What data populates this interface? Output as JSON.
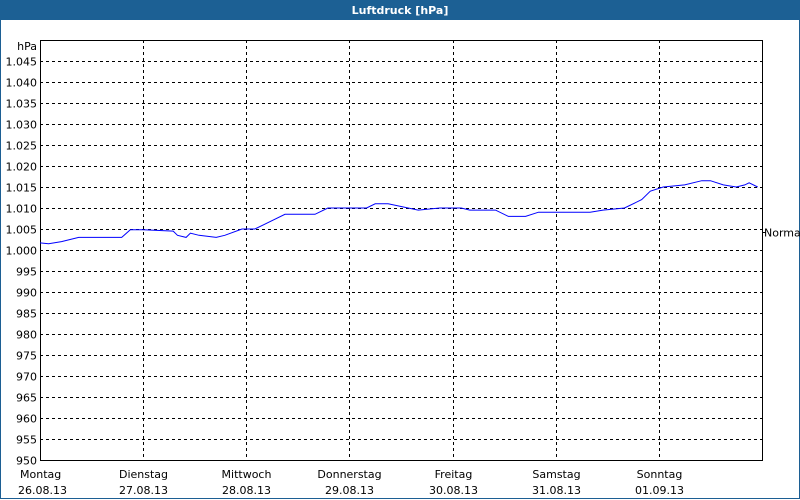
{
  "chart_data": {
    "type": "line",
    "title": "Luftdruck [hPa]",
    "ylabel": "hPa",
    "ylim": [
      950,
      1050
    ],
    "yticks": [
      950,
      955,
      960,
      965,
      970,
      975,
      980,
      985,
      990,
      995,
      1000,
      1005,
      1010,
      1015,
      1020,
      1025,
      1030,
      1035,
      1040,
      1045
    ],
    "ytick_labels": [
      "950",
      "955",
      "960",
      "965",
      "970",
      "975",
      "980",
      "985",
      "990",
      "995",
      "1.000",
      "1.005",
      "1.010",
      "1.015",
      "1.020",
      "1.025",
      "1.030",
      "1.035",
      "1.040",
      "1.045"
    ],
    "xlim": [
      "2013-08-26 00:00",
      "2013-09-02 00:00"
    ],
    "xticks": [
      {
        "day": "Montag",
        "date": "26.08.13",
        "at": "2013-08-26 00:00"
      },
      {
        "day": "Dienstag",
        "date": "27.08.13",
        "at": "2013-08-27 00:00"
      },
      {
        "day": "Mittwoch",
        "date": "28.08.13",
        "at": "2013-08-28 00:00"
      },
      {
        "day": "Donnerstag",
        "date": "29.08.13",
        "at": "2013-08-29 00:00"
      },
      {
        "day": "Freitag",
        "date": "30.08.13",
        "at": "2013-08-30 00:00"
      },
      {
        "day": "Samstag",
        "date": "31.08.13",
        "at": "2013-08-31 00:00"
      },
      {
        "day": "Sonntag",
        "date": "01.09.13",
        "at": "2013-09-01 00:00"
      }
    ],
    "grid": true,
    "reference_line": {
      "label": "Normal",
      "value": 1004.3
    },
    "series": [
      {
        "color": "#0000ff",
        "points": [
          [
            "2013-08-26 00:00",
            1001.7
          ],
          [
            "2013-08-26 02:00",
            1001.5
          ],
          [
            "2013-08-26 05:00",
            1002
          ],
          [
            "2013-08-26 07:00",
            1002.5
          ],
          [
            "2013-08-26 09:00",
            1003
          ],
          [
            "2013-08-26 13:00",
            1003
          ],
          [
            "2013-08-26 16:00",
            1003
          ],
          [
            "2013-08-26 19:00",
            1003
          ],
          [
            "2013-08-26 21:00",
            1004.8
          ],
          [
            "2013-08-27 00:00",
            1004.8
          ],
          [
            "2013-08-27 07:00",
            1004.5
          ],
          [
            "2013-08-27 08:00",
            1003.5
          ],
          [
            "2013-08-27 10:00",
            1003
          ],
          [
            "2013-08-27 11:00",
            1004
          ],
          [
            "2013-08-27 13:00",
            1003.5
          ],
          [
            "2013-08-27 17:00",
            1003
          ],
          [
            "2013-08-27 19:00",
            1003.5
          ],
          [
            "2013-08-27 23:00",
            1005
          ],
          [
            "2013-08-28 02:00",
            1005
          ],
          [
            "2013-08-28 04:00",
            1006
          ],
          [
            "2013-08-28 09:00",
            1008.5
          ],
          [
            "2013-08-28 16:00",
            1008.5
          ],
          [
            "2013-08-28 19:00",
            1010
          ],
          [
            "2013-08-29 04:00",
            1010
          ],
          [
            "2013-08-29 06:00",
            1011
          ],
          [
            "2013-08-29 09:00",
            1011
          ],
          [
            "2013-08-29 16:00",
            1009.5
          ],
          [
            "2013-08-29 21:00",
            1010
          ],
          [
            "2013-08-30 02:00",
            1010
          ],
          [
            "2013-08-30 04:00",
            1009.5
          ],
          [
            "2013-08-30 10:00",
            1009.5
          ],
          [
            "2013-08-30 13:00",
            1008
          ],
          [
            "2013-08-30 17:00",
            1008
          ],
          [
            "2013-08-30 20:00",
            1009
          ],
          [
            "2013-08-31 01:00",
            1009
          ],
          [
            "2013-08-31 08:00",
            1009
          ],
          [
            "2013-08-31 11:00",
            1009.5
          ],
          [
            "2013-08-31 16:00",
            1010
          ],
          [
            "2013-08-31 20:00",
            1012
          ],
          [
            "2013-08-31 22:00",
            1014
          ],
          [
            "2013-09-01 01:00",
            1015
          ],
          [
            "2013-09-01 06:00",
            1015.5
          ],
          [
            "2013-09-01 10:00",
            1016.5
          ],
          [
            "2013-09-01 12:00",
            1016.5
          ],
          [
            "2013-09-01 15:00",
            1015.5
          ],
          [
            "2013-09-01 18:00",
            1015
          ],
          [
            "2013-09-01 20:00",
            1015.5
          ],
          [
            "2013-09-01 21:00",
            1016
          ],
          [
            "2013-09-01 23:00",
            1015
          ]
        ]
      }
    ]
  }
}
